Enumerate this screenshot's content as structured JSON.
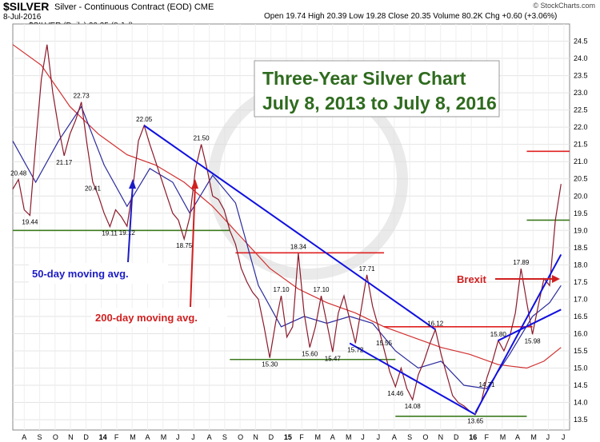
{
  "header": {
    "symbol": "$SILVER",
    "name": "Silver - Continuous Contract (EOD)",
    "exchange": "CME",
    "date": "8-Jul-2016",
    "ohlc_text": "Open 19.74  High 20.39  Low 19.28  Close 20.35  Volume 80.2K  Chg +0.60 (+3.06%)",
    "brand": "© StockCharts.com",
    "legend_text": "$SILVER (Daily) 20.35 (8 Jul)"
  },
  "chart_data": {
    "type": "line",
    "title_lines": [
      "Three-Year Silver Chart",
      "July 8, 2013 to July 8, 2016"
    ],
    "y_ticks": [
      13.5,
      14.0,
      14.5,
      15.0,
      15.5,
      16.0,
      16.5,
      17.0,
      17.5,
      18.0,
      18.5,
      19.0,
      19.5,
      20.0,
      20.5,
      21.0,
      21.5,
      22.0,
      22.5,
      23.0,
      23.5,
      24.0,
      24.5
    ],
    "ylim": [
      13.2,
      25.0
    ],
    "x_ticks": [
      "A",
      "S",
      "O",
      "N",
      "D",
      "14",
      "F",
      "M",
      "A",
      "M",
      "J",
      "J",
      "A",
      "S",
      "O",
      "N",
      "D",
      "15",
      "F",
      "M",
      "A",
      "M",
      "J",
      "J",
      "A",
      "S",
      "O",
      "N",
      "D",
      "16",
      "F",
      "M",
      "A",
      "M",
      "J",
      "J"
    ],
    "price": [
      [
        0,
        20.2
      ],
      [
        2,
        20.48
      ],
      [
        4,
        19.6
      ],
      [
        6,
        19.44
      ],
      [
        8,
        21.5
      ],
      [
        10,
        23.4
      ],
      [
        12,
        24.4
      ],
      [
        14,
        23.0
      ],
      [
        16,
        22.0
      ],
      [
        18,
        21.17
      ],
      [
        20,
        21.8
      ],
      [
        22,
        22.2
      ],
      [
        24,
        22.73
      ],
      [
        26,
        21.5
      ],
      [
        28,
        20.41
      ],
      [
        30,
        20.0
      ],
      [
        32,
        19.5
      ],
      [
        34,
        19.11
      ],
      [
        36,
        19.6
      ],
      [
        38,
        19.4
      ],
      [
        40,
        19.12
      ],
      [
        42,
        20.2
      ],
      [
        44,
        21.6
      ],
      [
        46,
        22.05
      ],
      [
        48,
        21.5
      ],
      [
        50,
        21.0
      ],
      [
        52,
        20.5
      ],
      [
        54,
        20.0
      ],
      [
        56,
        19.5
      ],
      [
        58,
        19.3
      ],
      [
        60,
        18.75
      ],
      [
        62,
        19.4
      ],
      [
        64,
        20.8
      ],
      [
        66,
        21.5
      ],
      [
        68,
        20.8
      ],
      [
        70,
        20.0
      ],
      [
        72,
        19.9
      ],
      [
        74,
        19.6
      ],
      [
        76,
        19.0
      ],
      [
        78,
        18.6
      ],
      [
        80,
        17.9
      ],
      [
        82,
        17.5
      ],
      [
        84,
        17.2
      ],
      [
        86,
        17.0
      ],
      [
        88,
        16.2
      ],
      [
        90,
        15.3
      ],
      [
        92,
        16.3
      ],
      [
        94,
        17.1
      ],
      [
        96,
        15.9
      ],
      [
        98,
        16.2
      ],
      [
        100,
        18.34
      ],
      [
        102,
        16.6
      ],
      [
        104,
        15.6
      ],
      [
        106,
        16.2
      ],
      [
        108,
        17.1
      ],
      [
        110,
        16.3
      ],
      [
        112,
        15.47
      ],
      [
        114,
        16.6
      ],
      [
        116,
        17.1
      ],
      [
        118,
        16.4
      ],
      [
        120,
        15.72
      ],
      [
        122,
        16.7
      ],
      [
        124,
        17.71
      ],
      [
        126,
        16.8
      ],
      [
        128,
        16.2
      ],
      [
        130,
        15.55
      ],
      [
        132,
        14.9
      ],
      [
        134,
        14.46
      ],
      [
        136,
        15.0
      ],
      [
        138,
        14.4
      ],
      [
        140,
        14.08
      ],
      [
        142,
        14.8
      ],
      [
        144,
        15.2
      ],
      [
        146,
        15.7
      ],
      [
        148,
        16.12
      ],
      [
        150,
        15.4
      ],
      [
        152,
        14.8
      ],
      [
        154,
        14.2
      ],
      [
        156,
        14.0
      ],
      [
        158,
        13.9
      ],
      [
        160,
        13.75
      ],
      [
        162,
        13.65
      ],
      [
        164,
        14.0
      ],
      [
        166,
        14.71
      ],
      [
        168,
        15.2
      ],
      [
        170,
        15.8
      ],
      [
        172,
        15.5
      ],
      [
        174,
        15.9
      ],
      [
        176,
        16.6
      ],
      [
        178,
        17.89
      ],
      [
        180,
        16.9
      ],
      [
        182,
        15.98
      ],
      [
        184,
        16.8
      ],
      [
        186,
        17.6
      ],
      [
        188,
        17.4
      ],
      [
        190,
        19.3
      ],
      [
        192,
        20.35
      ]
    ],
    "ma50": [
      [
        0,
        21.6
      ],
      [
        8,
        20.4
      ],
      [
        16,
        21.6
      ],
      [
        24,
        22.6
      ],
      [
        32,
        20.9
      ],
      [
        40,
        19.7
      ],
      [
        48,
        20.8
      ],
      [
        56,
        20.4
      ],
      [
        62,
        19.5
      ],
      [
        70,
        20.6
      ],
      [
        78,
        19.8
      ],
      [
        86,
        17.4
      ],
      [
        94,
        16.2
      ],
      [
        102,
        16.5
      ],
      [
        110,
        16.3
      ],
      [
        118,
        16.5
      ],
      [
        126,
        16.3
      ],
      [
        134,
        15.5
      ],
      [
        142,
        15.0
      ],
      [
        150,
        15.2
      ],
      [
        158,
        14.5
      ],
      [
        166,
        14.4
      ],
      [
        174,
        15.4
      ],
      [
        182,
        16.5
      ],
      [
        188,
        16.9
      ],
      [
        192,
        17.4
      ]
    ],
    "ma200": [
      [
        0,
        24.4
      ],
      [
        10,
        23.8
      ],
      [
        20,
        22.6
      ],
      [
        30,
        21.8
      ],
      [
        40,
        21.2
      ],
      [
        50,
        20.9
      ],
      [
        60,
        20.4
      ],
      [
        70,
        19.7
      ],
      [
        80,
        18.8
      ],
      [
        90,
        17.9
      ],
      [
        100,
        17.3
      ],
      [
        110,
        16.9
      ],
      [
        120,
        16.6
      ],
      [
        130,
        16.2
      ],
      [
        140,
        15.9
      ],
      [
        150,
        15.6
      ],
      [
        160,
        15.4
      ],
      [
        170,
        15.1
      ],
      [
        180,
        15.0
      ],
      [
        186,
        15.2
      ],
      [
        192,
        15.6
      ]
    ],
    "point_labels": [
      {
        "x": 2,
        "y": 20.48,
        "text": "20.48"
      },
      {
        "x": 6,
        "y": 19.44,
        "text": "19.44"
      },
      {
        "x": 18,
        "y": 21.17,
        "text": "21.17"
      },
      {
        "x": 24,
        "y": 22.73,
        "text": "22.73"
      },
      {
        "x": 28,
        "y": 20.41,
        "text": "20.41"
      },
      {
        "x": 34,
        "y": 19.11,
        "text": "19.11"
      },
      {
        "x": 40,
        "y": 19.12,
        "text": "19.12"
      },
      {
        "x": 46,
        "y": 22.05,
        "text": "22.05"
      },
      {
        "x": 60,
        "y": 18.75,
        "text": "18.75"
      },
      {
        "x": 66,
        "y": 21.5,
        "text": "21.50"
      },
      {
        "x": 100,
        "y": 18.34,
        "text": "18.34"
      },
      {
        "x": 94,
        "y": 17.1,
        "text": "17.10"
      },
      {
        "x": 108,
        "y": 17.1,
        "text": "17.10"
      },
      {
        "x": 124,
        "y": 17.71,
        "text": "17.71"
      },
      {
        "x": 90,
        "y": 15.3,
        "text": "15.30"
      },
      {
        "x": 104,
        "y": 15.6,
        "text": "15.60"
      },
      {
        "x": 112,
        "y": 15.47,
        "text": "15.47"
      },
      {
        "x": 120,
        "y": 15.72,
        "text": "15.72"
      },
      {
        "x": 130,
        "y": 15.55,
        "text": "15.55"
      },
      {
        "x": 148,
        "y": 16.12,
        "text": "16.12"
      },
      {
        "x": 134,
        "y": 14.46,
        "text": "14.46"
      },
      {
        "x": 140,
        "y": 14.08,
        "text": "14.08"
      },
      {
        "x": 162,
        "y": 13.65,
        "text": "13.65"
      },
      {
        "x": 166,
        "y": 14.71,
        "text": "14.71"
      },
      {
        "x": 170,
        "y": 15.8,
        "text": "15.80"
      },
      {
        "x": 178,
        "y": 17.89,
        "text": "17.89"
      },
      {
        "x": 182,
        "y": 15.98,
        "text": "15.98"
      }
    ],
    "blue_lines": [
      [
        [
          46,
          22.05
        ],
        [
          148,
          16.12
        ]
      ],
      [
        [
          118,
          15.72
        ],
        [
          162,
          13.65
        ]
      ],
      [
        [
          162,
          13.7
        ],
        [
          192,
          18.3
        ]
      ],
      [
        [
          170,
          15.8
        ],
        [
          192,
          16.7
        ]
      ]
    ],
    "red_hlines": [
      {
        "x1": 78,
        "x2": 130,
        "y": 18.35
      },
      {
        "x1": 130,
        "x2": 182,
        "y": 16.2
      },
      {
        "x1": 180,
        "x2": 195,
        "y": 21.3
      }
    ],
    "green_hlines": [
      {
        "x1": 0,
        "x2": 76,
        "y": 19.0
      },
      {
        "x1": 76,
        "x2": 134,
        "y": 15.25
      },
      {
        "x1": 134,
        "x2": 180,
        "y": 13.6
      },
      {
        "x1": 180,
        "x2": 195,
        "y": 19.3
      }
    ],
    "annotations": {
      "ma50_label": "50-day moving avg.",
      "ma200_label": "200-day moving avg.",
      "brexit_label": "Brexit"
    }
  }
}
